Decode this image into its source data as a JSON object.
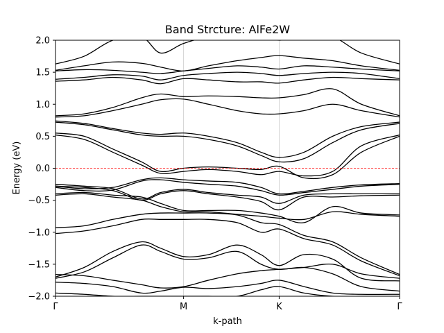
{
  "chart_data": {
    "type": "line",
    "title": "Band Strcture: AlFe2W",
    "xlabel": "k-path",
    "ylabel": "Energy (eV)",
    "ylim": [
      -2.0,
      2.0
    ],
    "xlim": [
      0,
      3.6
    ],
    "x_ticks": [
      {
        "label": "Γ",
        "x": 0
      },
      {
        "label": "M",
        "x": 1.34
      },
      {
        "label": "K",
        "x": 2.34
      },
      {
        "label": "Γ",
        "x": 3.6
      }
    ],
    "y_ticks": [
      {
        "label": "−2.0",
        "y": -2.0
      },
      {
        "label": "−1.5",
        "y": -1.5
      },
      {
        "label": "−1.0",
        "y": -1.0
      },
      {
        "label": "−0.5",
        "y": -0.5
      },
      {
        "label": "0.0",
        "y": 0.0
      },
      {
        "label": "0.5",
        "y": 0.5
      },
      {
        "label": "1.0",
        "y": 1.0
      },
      {
        "label": "1.5",
        "y": 1.5
      },
      {
        "label": "2.0",
        "y": 2.0
      }
    ],
    "fermi_level": 0.0,
    "grid": "vertical lines at high-symmetry points",
    "line_color": "#000000",
    "fermi_color": "#ff0000",
    "bands": [
      {
        "x": [
          0,
          0.3,
          0.6,
          0.9,
          1.1,
          1.34,
          1.6,
          1.9,
          2.15,
          2.34,
          2.6,
          2.9,
          3.2,
          3.6
        ],
        "y": [
          -1.95,
          -1.97,
          -2.0,
          -2.0,
          -2.0,
          -2.0,
          -2.0,
          -2.0,
          -1.9,
          -1.85,
          -1.95,
          -2.0,
          -2.0,
          -2.0
        ]
      },
      {
        "x": [
          0,
          0.3,
          0.6,
          0.9,
          1.1,
          1.34,
          1.6,
          1.9,
          2.15,
          2.34,
          2.6,
          2.9,
          3.2,
          3.6
        ],
        "y": [
          -1.78,
          -1.8,
          -1.85,
          -1.95,
          -1.92,
          -1.86,
          -1.88,
          -1.85,
          -1.8,
          -1.75,
          -1.85,
          -1.95,
          -1.97,
          -1.97
        ]
      },
      {
        "x": [
          0,
          0.3,
          0.6,
          0.9,
          1.1,
          1.34,
          1.6,
          1.9,
          2.15,
          2.34,
          2.6,
          2.9,
          3.2,
          3.6
        ],
        "y": [
          -1.72,
          -1.62,
          -1.4,
          -1.2,
          -1.3,
          -1.42,
          -1.4,
          -1.3,
          -1.5,
          -1.58,
          -1.55,
          -1.65,
          -1.85,
          -1.92
        ]
      },
      {
        "x": [
          0,
          0.3,
          0.6,
          0.9,
          1.1,
          1.34,
          1.6,
          1.9,
          2.15,
          2.34,
          2.6,
          2.9,
          3.2,
          3.6
        ],
        "y": [
          -1.7,
          -1.55,
          -1.3,
          -1.15,
          -1.25,
          -1.38,
          -1.35,
          -1.2,
          -1.35,
          -1.52,
          -1.35,
          -1.42,
          -1.72,
          -1.76
        ]
      },
      {
        "x": [
          0,
          0.3,
          0.6,
          0.9,
          1.1,
          1.34,
          1.6,
          1.9,
          2.15,
          2.34,
          2.6,
          2.9,
          3.2,
          3.6
        ],
        "y": [
          -1.66,
          -1.68,
          -1.75,
          -1.82,
          -1.87,
          -1.85,
          -1.75,
          -1.65,
          -1.6,
          -1.58,
          -1.55,
          -1.5,
          -1.65,
          -1.72
        ]
      },
      {
        "x": [
          0,
          0.3,
          0.6,
          0.9,
          1.1,
          1.34,
          1.6,
          1.9,
          2.15,
          2.34,
          2.6,
          2.9,
          3.2,
          3.6
        ],
        "y": [
          -1.02,
          -0.98,
          -0.9,
          -0.8,
          -0.8,
          -0.8,
          -0.8,
          -0.85,
          -1.0,
          -0.95,
          -1.1,
          -1.2,
          -1.45,
          -1.68
        ]
      },
      {
        "x": [
          0,
          0.3,
          0.6,
          0.9,
          1.1,
          1.34,
          1.6,
          1.9,
          2.15,
          2.34,
          2.6,
          2.9,
          3.2,
          3.6
        ],
        "y": [
          -0.93,
          -0.9,
          -0.8,
          -0.72,
          -0.7,
          -0.7,
          -0.7,
          -0.73,
          -0.85,
          -0.88,
          -1.05,
          -1.15,
          -1.4,
          -1.66
        ]
      },
      {
        "x": [
          0,
          0.3,
          0.6,
          0.9,
          1.1,
          1.34,
          1.6,
          1.9,
          2.15,
          2.34,
          2.6,
          2.9,
          3.2,
          3.6
        ],
        "y": [
          -0.42,
          -0.4,
          -0.45,
          -0.5,
          -0.6,
          -0.68,
          -0.68,
          -0.72,
          -0.75,
          -0.78,
          -0.8,
          -0.68,
          -0.72,
          -0.75
        ]
      },
      {
        "x": [
          0,
          0.3,
          0.6,
          0.9,
          1.1,
          1.34,
          1.6,
          1.9,
          2.15,
          2.34,
          2.6,
          2.9,
          3.2,
          3.6
        ],
        "y": [
          -0.4,
          -0.38,
          -0.42,
          -0.45,
          -0.55,
          -0.66,
          -0.66,
          -0.66,
          -0.7,
          -0.75,
          -0.85,
          -0.6,
          -0.7,
          -0.73
        ]
      },
      {
        "x": [
          0,
          0.3,
          0.6,
          0.9,
          1.1,
          1.34,
          1.6,
          1.9,
          2.15,
          2.34,
          2.6,
          2.9,
          3.2,
          3.6
        ],
        "y": [
          -0.28,
          -0.3,
          -0.35,
          -0.5,
          -0.4,
          -0.35,
          -0.4,
          -0.45,
          -0.52,
          -0.65,
          -0.45,
          -0.45,
          -0.43,
          -0.42
        ]
      },
      {
        "x": [
          0,
          0.3,
          0.6,
          0.9,
          1.1,
          1.34,
          1.6,
          1.9,
          2.15,
          2.34,
          2.6,
          2.9,
          3.2,
          3.6
        ],
        "y": [
          -0.25,
          -0.28,
          -0.32,
          -0.48,
          -0.38,
          -0.33,
          -0.38,
          -0.42,
          -0.45,
          -0.55,
          -0.42,
          -0.4,
          -0.4,
          -0.4
        ]
      },
      {
        "x": [
          0,
          0.3,
          0.6,
          0.9,
          1.1,
          1.34,
          1.6,
          1.9,
          2.15,
          2.34,
          2.6,
          2.9,
          3.2,
          3.6
        ],
        "y": [
          -0.3,
          -0.35,
          -0.34,
          -0.2,
          -0.18,
          -0.22,
          -0.25,
          -0.28,
          -0.35,
          -0.42,
          -0.38,
          -0.33,
          -0.28,
          -0.25
        ]
      },
      {
        "x": [
          0,
          0.3,
          0.6,
          0.9,
          1.1,
          1.34,
          1.6,
          1.9,
          2.15,
          2.34,
          2.6,
          2.9,
          3.2,
          3.6
        ],
        "y": [
          -0.28,
          -0.32,
          -0.3,
          -0.18,
          -0.15,
          -0.18,
          -0.2,
          -0.22,
          -0.3,
          -0.4,
          -0.36,
          -0.3,
          -0.26,
          -0.24
        ]
      },
      {
        "x": [
          0,
          0.3,
          0.6,
          0.9,
          1.1,
          1.34,
          1.6,
          1.9,
          2.15,
          2.34,
          2.6,
          2.9,
          3.2,
          3.6
        ],
        "y": [
          0.52,
          0.45,
          0.25,
          0.05,
          -0.08,
          -0.05,
          -0.02,
          -0.05,
          -0.1,
          -0.05,
          -0.12,
          -0.05,
          0.35,
          0.52
        ]
      },
      {
        "x": [
          0,
          0.3,
          0.6,
          0.9,
          1.1,
          1.34,
          1.6,
          1.9,
          2.15,
          2.34,
          2.6,
          2.9,
          3.2,
          3.6
        ],
        "y": [
          0.55,
          0.5,
          0.3,
          0.1,
          -0.05,
          0.0,
          0.02,
          0.0,
          -0.02,
          0.03,
          -0.15,
          -0.1,
          0.25,
          0.5
        ]
      },
      {
        "x": [
          0,
          0.3,
          0.6,
          0.9,
          1.1,
          1.34,
          1.6,
          1.9,
          2.15,
          2.34,
          2.6,
          2.9,
          3.2,
          3.6
        ],
        "y": [
          0.72,
          0.68,
          0.6,
          0.52,
          0.5,
          0.5,
          0.45,
          0.35,
          0.2,
          0.1,
          0.15,
          0.4,
          0.6,
          0.7
        ]
      },
      {
        "x": [
          0,
          0.3,
          0.6,
          0.9,
          1.1,
          1.34,
          1.6,
          1.9,
          2.15,
          2.34,
          2.6,
          2.9,
          3.2,
          3.6
        ],
        "y": [
          0.74,
          0.7,
          0.62,
          0.55,
          0.53,
          0.55,
          0.5,
          0.4,
          0.25,
          0.17,
          0.25,
          0.5,
          0.65,
          0.72
        ]
      },
      {
        "x": [
          0,
          0.3,
          0.6,
          0.9,
          1.1,
          1.34,
          1.6,
          1.9,
          2.15,
          2.34,
          2.6,
          2.9,
          3.2,
          3.6
        ],
        "y": [
          0.8,
          0.82,
          0.9,
          1.0,
          1.07,
          1.08,
          1.0,
          0.9,
          0.85,
          0.85,
          0.9,
          1.0,
          0.9,
          0.8
        ]
      },
      {
        "x": [
          0,
          0.3,
          0.6,
          0.9,
          1.1,
          1.34,
          1.6,
          1.9,
          2.15,
          2.34,
          2.6,
          2.9,
          3.2,
          3.6
        ],
        "y": [
          0.82,
          0.85,
          0.95,
          1.1,
          1.16,
          1.12,
          1.13,
          1.12,
          1.1,
          1.1,
          1.15,
          1.24,
          1.0,
          0.82
        ]
      },
      {
        "x": [
          0,
          0.3,
          0.6,
          0.9,
          1.1,
          1.34,
          1.6,
          1.9,
          2.15,
          2.34,
          2.6,
          2.9,
          3.2,
          3.6
        ],
        "y": [
          1.36,
          1.38,
          1.42,
          1.38,
          1.32,
          1.4,
          1.38,
          1.35,
          1.35,
          1.33,
          1.38,
          1.42,
          1.4,
          1.38
        ]
      },
      {
        "x": [
          0,
          0.3,
          0.6,
          0.9,
          1.1,
          1.34,
          1.6,
          1.9,
          2.15,
          2.34,
          2.6,
          2.9,
          3.2,
          3.6
        ],
        "y": [
          1.39,
          1.42,
          1.46,
          1.44,
          1.38,
          1.45,
          1.48,
          1.5,
          1.48,
          1.45,
          1.48,
          1.5,
          1.48,
          1.4
        ]
      },
      {
        "x": [
          0,
          0.3,
          0.6,
          0.9,
          1.1,
          1.34,
          1.6,
          1.9,
          2.15,
          2.34,
          2.6,
          2.9,
          3.2,
          3.6
        ],
        "y": [
          1.52,
          1.54,
          1.53,
          1.5,
          1.48,
          1.52,
          1.56,
          1.6,
          1.58,
          1.55,
          1.6,
          1.58,
          1.55,
          1.52
        ]
      },
      {
        "x": [
          0,
          0.3,
          0.6,
          0.9,
          1.1,
          1.34,
          1.6,
          1.9,
          2.15,
          2.34,
          2.6,
          2.9,
          3.2,
          3.6
        ],
        "y": [
          1.53,
          1.6,
          1.66,
          1.64,
          1.58,
          1.52,
          1.6,
          1.68,
          1.73,
          1.76,
          1.72,
          1.68,
          1.6,
          1.53
        ]
      },
      {
        "x": [
          0,
          0.3,
          0.6,
          0.9,
          1.1,
          1.34,
          1.6,
          1.9,
          2.15,
          2.34,
          2.6,
          2.9,
          3.2,
          3.6
        ],
        "y": [
          1.63,
          1.75,
          2.0,
          2.05,
          1.8,
          1.95,
          2.05,
          2.05,
          2.05,
          2.0,
          2.05,
          2.05,
          1.8,
          1.63
        ]
      }
    ]
  }
}
